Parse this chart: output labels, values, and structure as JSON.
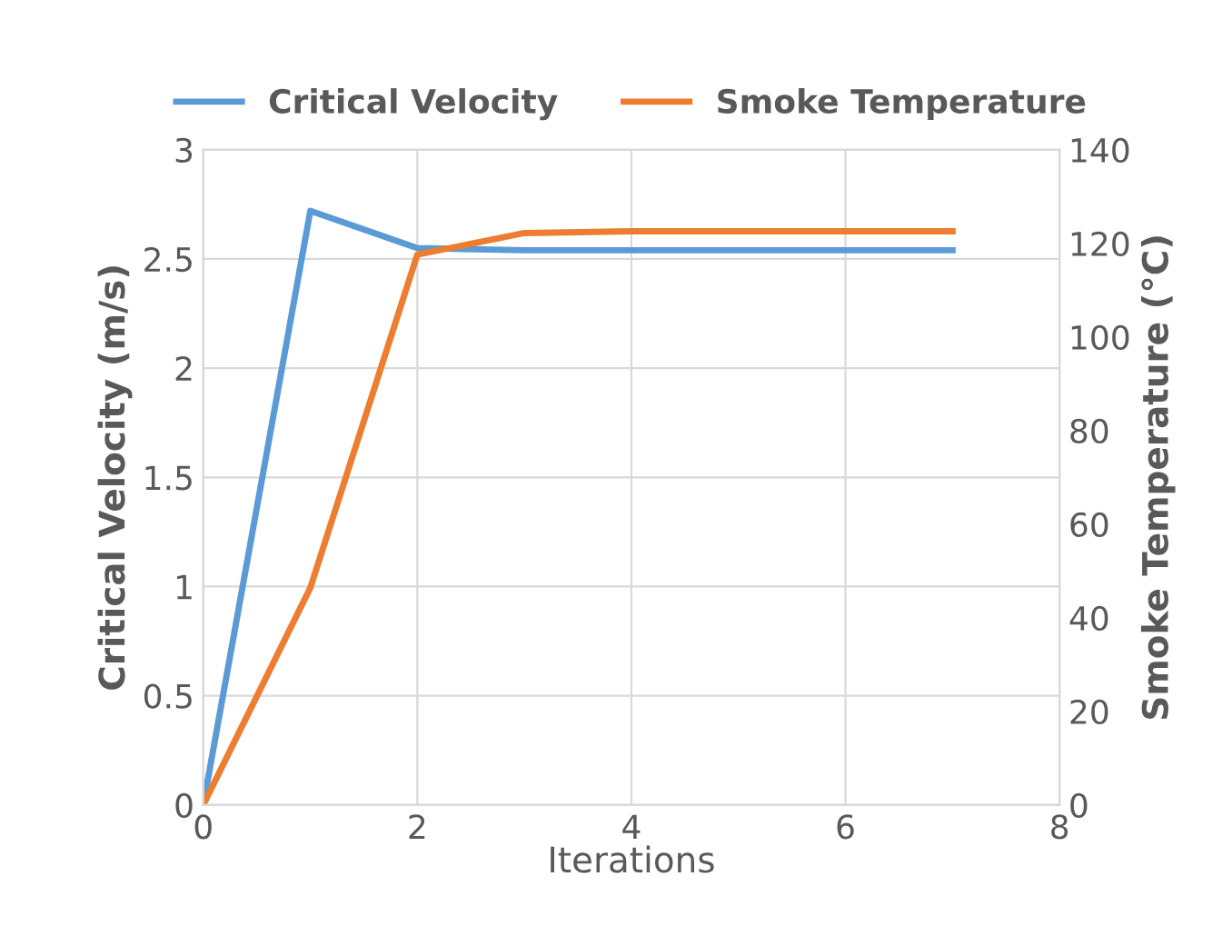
{
  "chart_data": {
    "type": "line",
    "xlabel": "Iterations",
    "ylabel": "Critical Velocity (m/s)",
    "y2label": "Smoke Temperature (°C)",
    "xlim": [
      0,
      8
    ],
    "xticks": [
      0,
      2,
      4,
      6,
      8
    ],
    "ylim": [
      0,
      3
    ],
    "yticks": [
      0,
      0.5,
      1,
      1.5,
      2,
      2.5,
      3
    ],
    "y2lim": [
      0,
      140
    ],
    "y2ticks": [
      0,
      20,
      40,
      60,
      80,
      100,
      120,
      140
    ],
    "grid": true,
    "legend": "top",
    "marker": "none",
    "line_style": "solid",
    "series": [
      {
        "name": "Critical Velocity",
        "color": "#5b9bd5",
        "x": [
          0,
          1,
          2,
          3,
          4,
          5,
          6,
          7
        ],
        "values": [
          0,
          2.72,
          2.55,
          2.54,
          2.54,
          2.54,
          2.54,
          2.54
        ]
      },
      {
        "name": "Smoke Temperature",
        "color": "#ed7d31",
        "axis": "y2",
        "x": [
          0,
          1,
          2,
          3,
          4,
          5,
          6,
          7
        ],
        "values": [
          0,
          46.4,
          117.6,
          122.2,
          122.6,
          122.6,
          122.6,
          122.6
        ]
      }
    ]
  }
}
